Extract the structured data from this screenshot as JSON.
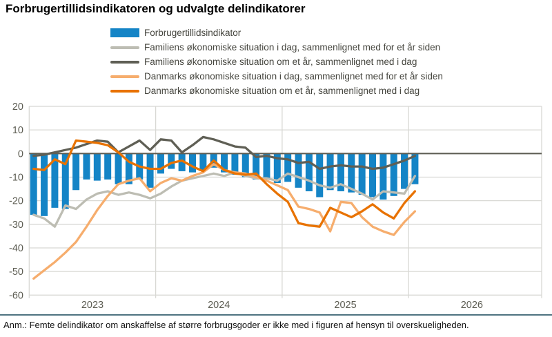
{
  "title": "Forbrugertillidsindikatoren og udvalgte delindikatorer",
  "note": "Anm.: Femte delindikator om anskaffelse af større forbrugsgoder er ikke med i figuren af hensyn til overskueligheden.",
  "colors": {
    "bar_blue": "#1484c6",
    "light_gray": "#bdbdb3",
    "dark_gray": "#5f5f55",
    "light_orange": "#f6ad6d",
    "dark_orange": "#e87200",
    "gridline": "#d8d8d4",
    "zero_line": "#5e5e54",
    "axis_text": "#5d5d53",
    "note_rule": "#4e7380"
  },
  "legend": {
    "items": [
      {
        "label": "Forbrugertillidsindikator"
      },
      {
        "label": "Familiens økonomiske situation i dag, sammenlignet med for et år siden"
      },
      {
        "label": "Familiens økonomiske situation om et år, sammenlignet med i dag"
      },
      {
        "label": "Danmarks økonomiske situation i dag, sammenlignet med for et år siden"
      },
      {
        "label": "Danmarks økonomiske situation om et år, sammenlignet med i dag"
      }
    ]
  },
  "chart_data": {
    "type": "bar+line",
    "title": "Forbrugertillidsindikatoren og udvalgte delindikatorer",
    "xlabel": "",
    "ylabel": "",
    "ylim": [
      -60,
      20
    ],
    "yticks": [
      20,
      10,
      0,
      -10,
      -20,
      -30,
      -40,
      -50,
      -60
    ],
    "grid": true,
    "legend_position": "top",
    "x_year_labels": [
      "2023",
      "2024",
      "2025",
      "2026"
    ],
    "x": [
      "2023-01",
      "2023-02",
      "2023-03",
      "2023-04",
      "2023-05",
      "2023-06",
      "2023-07",
      "2023-08",
      "2023-09",
      "2023-10",
      "2023-11",
      "2023-12",
      "2024-01",
      "2024-02",
      "2024-03",
      "2024-04",
      "2024-05",
      "2024-06",
      "2024-07",
      "2024-08",
      "2024-09",
      "2024-10",
      "2024-11",
      "2024-12",
      "2025-01",
      "2025-02",
      "2025-03",
      "2025-04",
      "2025-05",
      "2025-06",
      "2025-07",
      "2025-08",
      "2025-09",
      "2025-10",
      "2025-11",
      "2025-12",
      "2026-01"
    ],
    "series": [
      {
        "name": "Forbrugertillidsindikator",
        "type": "bar",
        "color": "#1484c6",
        "values": [
          -26,
          -26.5,
          -23,
          -23.5,
          -15.5,
          -11,
          -11.5,
          -11,
          -13,
          -13,
          -11,
          -14.5,
          -8.5,
          -6.5,
          -7.5,
          -8,
          -7.5,
          -6,
          -8,
          -9,
          -10,
          -11,
          -11,
          -12.5,
          -12,
          -14.5,
          -16,
          -18.5,
          -15.5,
          -16,
          -16.5,
          -17.5,
          -18.5,
          -19.5,
          -18,
          -15,
          -13
        ]
      },
      {
        "name": "Familiens økonomiske situation i dag, sammenlignet med for et år siden",
        "type": "line",
        "color": "#bdbdb3",
        "values": [
          -26,
          -27.5,
          -31,
          -22,
          -23.5,
          -19.5,
          -17,
          -16,
          -17.5,
          -16.5,
          -17.5,
          -19,
          -17,
          -14,
          -11.5,
          -10.5,
          -9.5,
          -8.5,
          -9.5,
          -8,
          -9.5,
          -10.5,
          -10.5,
          -11.5,
          -8.5,
          -10,
          -11.5,
          -13.5,
          -14.5,
          -13,
          -15,
          -17,
          -19.5,
          -16,
          -16.5,
          -17,
          -9.5
        ]
      },
      {
        "name": "Familiens økonomiske situation om et år, sammenlignet med i dag",
        "type": "line",
        "color": "#5f5f55",
        "values": [
          -1,
          -0.5,
          0.5,
          1.5,
          2.5,
          4,
          5.5,
          5,
          0.5,
          3,
          5.5,
          1.5,
          6,
          5.5,
          0.5,
          3.5,
          7,
          6,
          4.5,
          3,
          2.5,
          -1.5,
          -1,
          -2,
          -2.5,
          -4,
          -3.5,
          -6.5,
          -5.5,
          -5,
          -5.5,
          -5.5,
          -6.5,
          -6,
          -4.5,
          -3,
          -1
        ]
      },
      {
        "name": "Danmarks økonomiske situation i dag, sammenlignet med for et år siden",
        "type": "line",
        "color": "#f6ad6d",
        "values": [
          -53,
          -49.5,
          -46,
          -42,
          -37.5,
          -31,
          -24,
          -18,
          -13,
          -11.5,
          -10.5,
          -16,
          -12.5,
          -10.5,
          -11.5,
          -9.5,
          -8,
          -4.5,
          -7,
          -8,
          -8.5,
          -10,
          -11.5,
          -13.5,
          -15.5,
          -22.5,
          -23.5,
          -25,
          -33,
          -20.5,
          -21,
          -27,
          -31,
          -33,
          -34.5,
          -29,
          -24.5
        ]
      },
      {
        "name": "Danmarks økonomiske situation om et år, sammenlignet med i dag",
        "type": "line",
        "color": "#e87200",
        "values": [
          -6.5,
          -7,
          -2.5,
          -4.5,
          5.5,
          5,
          4.5,
          3.5,
          0.5,
          -3.5,
          -5.5,
          -6.5,
          -6.5,
          -4,
          -3,
          -5.5,
          -7.5,
          -3,
          -7,
          -8.5,
          -9,
          -8.5,
          -13,
          -17,
          -20.5,
          -29.5,
          -30.5,
          -31,
          -23,
          -25,
          -27,
          -24.5,
          -21.5,
          -25,
          -27.5,
          -21,
          -16
        ]
      }
    ]
  }
}
